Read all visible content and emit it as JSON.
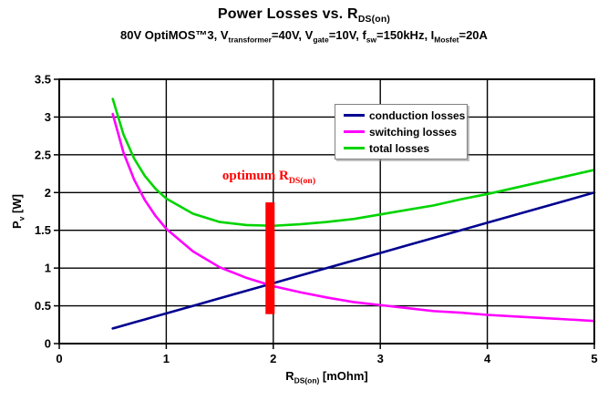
{
  "title": {
    "text": "Power Losses vs. RDS(on)",
    "parts": [
      {
        "t": "Power Losses vs. R"
      },
      {
        "t": "DS(on)",
        "sub": true
      }
    ]
  },
  "subtitle": {
    "text": "80V OptiMOS™3, Vtransformer=40V, Vgate=10V, fsw=150kHz, IMosfet=20A",
    "parts": [
      {
        "t": "80V OptiMOS™3, V"
      },
      {
        "t": "transformer",
        "sub": true
      },
      {
        "t": "=40V, V"
      },
      {
        "t": "gate",
        "sub": true
      },
      {
        "t": "=10V, f"
      },
      {
        "t": "sw",
        "sub": true
      },
      {
        "t": "=150kHz, I"
      },
      {
        "t": "Mosfet",
        "sub": true
      },
      {
        "t": "=20A"
      }
    ]
  },
  "axes": {
    "x": {
      "label_parts": [
        {
          "t": "R"
        },
        {
          "t": "DS(on)",
          "sub": true
        },
        {
          "t": " [mOhm]"
        }
      ]
    },
    "y": {
      "label_parts": [
        {
          "t": "P"
        },
        {
          "t": "v",
          "sub": true
        },
        {
          "t": " [W]"
        }
      ]
    }
  },
  "chart_data": {
    "type": "line",
    "title": "Power Losses vs. RDS(on)",
    "subtitle": "80V OptiMOS™3, Vtransformer=40V, Vgate=10V, fsw=150kHz, IMosfet=20A",
    "xlabel": "RDS(on) [mOhm]",
    "ylabel": "Pv [W]",
    "xlim": [
      0,
      5
    ],
    "ylim": [
      0,
      3.5
    ],
    "x_ticks": [
      0,
      1,
      2,
      3,
      4,
      5
    ],
    "y_ticks": [
      0,
      0.5,
      1,
      1.5,
      2,
      2.5,
      3,
      3.5
    ],
    "grid": true,
    "legend_position": "upper-right-inside",
    "x": [
      0.5,
      0.6,
      0.7,
      0.8,
      0.9,
      1,
      1.25,
      1.5,
      1.75,
      2,
      2.25,
      2.5,
      2.75,
      3,
      3.25,
      3.5,
      3.75,
      4,
      4.25,
      4.5,
      4.75,
      5
    ],
    "series": [
      {
        "name": "conduction losses",
        "color": "#000090",
        "values": [
          0.2,
          0.24,
          0.28,
          0.32,
          0.36,
          0.4,
          0.5,
          0.6,
          0.7,
          0.8,
          0.9,
          1.0,
          1.1,
          1.2,
          1.3,
          1.4,
          1.5,
          1.6,
          1.7,
          1.8,
          1.9,
          2.0
        ]
      },
      {
        "name": "switching losses",
        "color": "#ff00ff",
        "values": [
          3.04,
          2.53,
          2.17,
          1.9,
          1.69,
          1.52,
          1.22,
          1.01,
          0.87,
          0.76,
          0.68,
          0.61,
          0.55,
          0.51,
          0.47,
          0.43,
          0.41,
          0.38,
          0.36,
          0.34,
          0.32,
          0.3
        ]
      },
      {
        "name": "total losses",
        "color": "#00d400",
        "values": [
          3.24,
          2.77,
          2.45,
          2.22,
          2.05,
          1.92,
          1.72,
          1.61,
          1.57,
          1.56,
          1.58,
          1.61,
          1.65,
          1.71,
          1.77,
          1.83,
          1.91,
          1.98,
          2.06,
          2.14,
          2.22,
          2.3
        ]
      }
    ],
    "annotation": {
      "label": "optimum RDS(on)",
      "label_parts": [
        {
          "t": "optimum R"
        },
        {
          "t": "DS(on)",
          "sub": true
        }
      ],
      "color": "#ff0000",
      "marker_x": 1.97,
      "marker_y_from": 0.39,
      "marker_y_to": 1.87
    },
    "colors": {
      "grid": "#000000",
      "plot_border": "#000000",
      "background": "#ffffff"
    }
  },
  "legend": {
    "items": [
      {
        "label": "conduction losses",
        "color": "#000090"
      },
      {
        "label": "switching losses",
        "color": "#ff00ff"
      },
      {
        "label": "total losses",
        "color": "#00d400"
      }
    ]
  }
}
